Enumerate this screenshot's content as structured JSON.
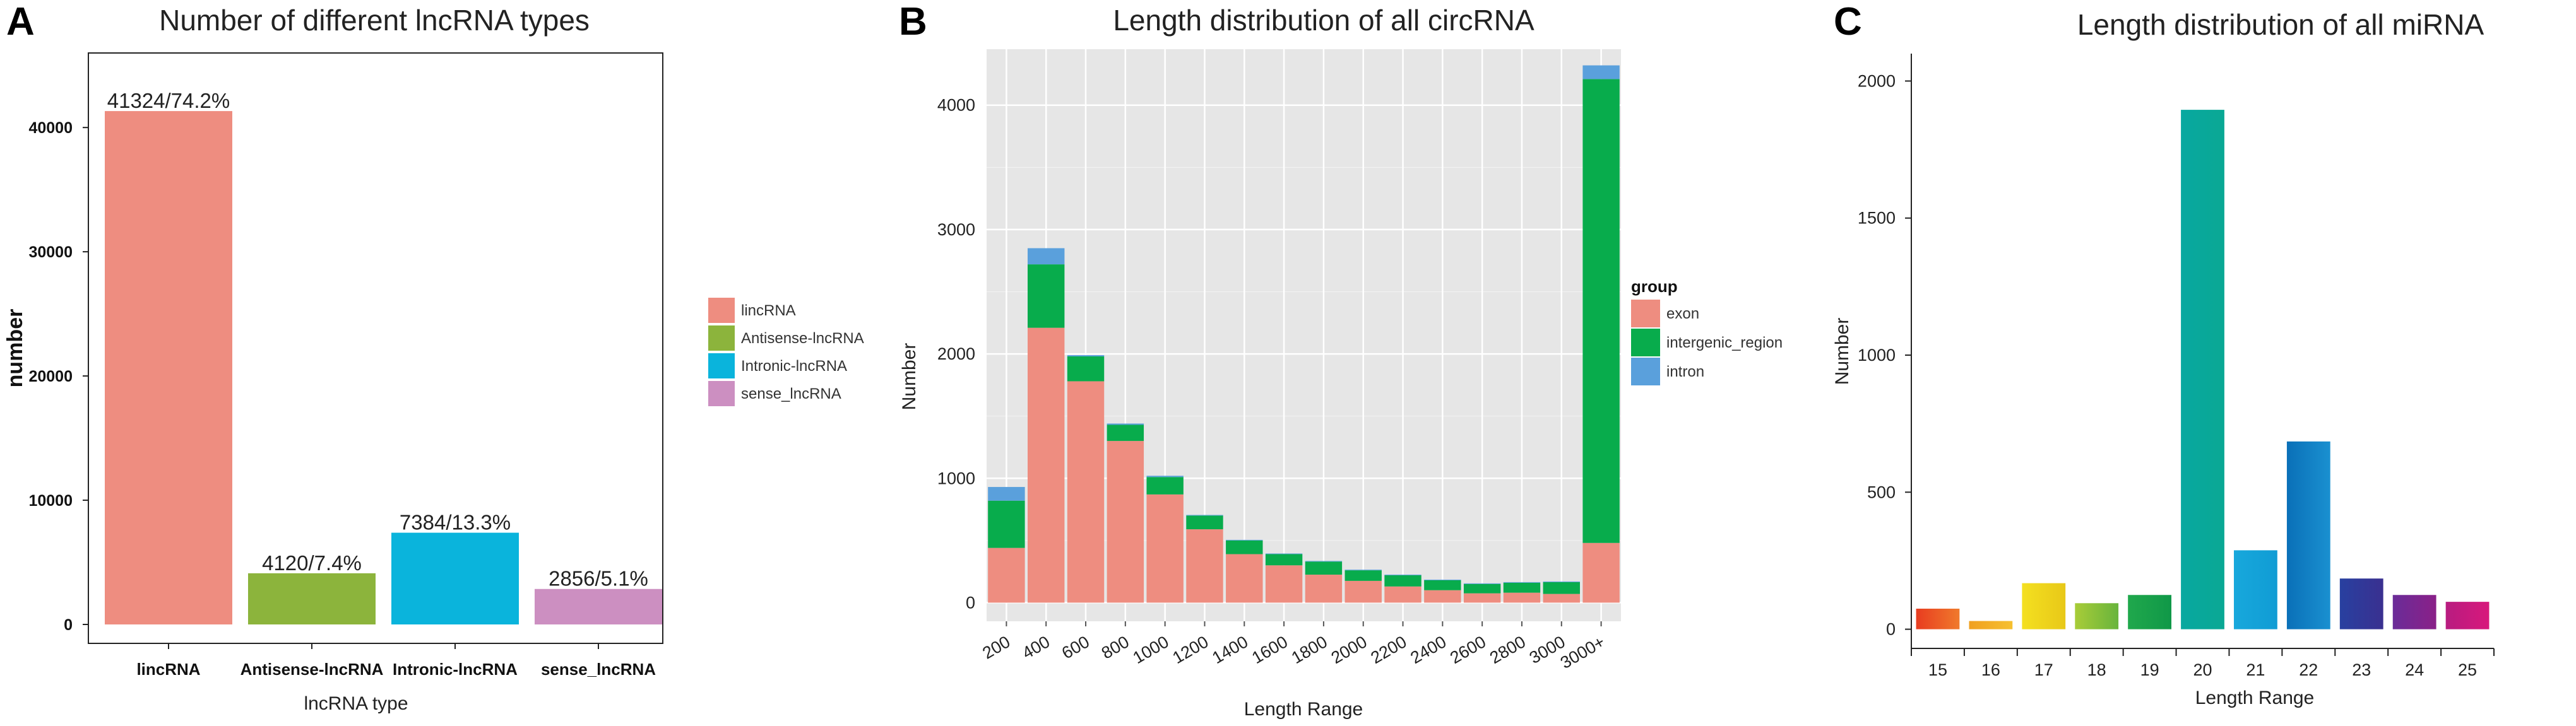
{
  "colors": {
    "lincRNA": "#ee8d80",
    "antisense": "#8cb43c",
    "intronic": "#0ab4dc",
    "sense": "#cc8fc1",
    "exon": "#ee8d80",
    "intergenic_region": "#08ac4c",
    "intron": "#5aa0dc"
  },
  "chart_data": [
    {
      "panel": "A",
      "type": "bar",
      "title": "Number of different lncRNA types",
      "xlabel": "lncRNA type",
      "ylabel": "number",
      "ylim": [
        0,
        46000
      ],
      "yticks": [
        0,
        10000,
        20000,
        30000,
        40000
      ],
      "categories": [
        "lincRNA",
        "Antisense-lncRNA",
        "Intronic-lncRNA",
        "sense_lncRNA"
      ],
      "values": [
        41324,
        4120,
        7384,
        2856
      ],
      "data_labels": [
        "41324/74.2%",
        "4120/7.4%",
        "7384/13.3%",
        "2856/5.1%"
      ],
      "bar_colors": [
        "#ee8d80",
        "#8cb43c",
        "#0ab4dc",
        "#cc8fc1"
      ],
      "legend": [
        "lincRNA",
        "Antisense-lncRNA",
        "Intronic-lncRNA",
        "sense_lncRNA"
      ],
      "legend_position": "right",
      "grid": false
    },
    {
      "panel": "B",
      "type": "bar",
      "stacked": true,
      "title": "Length distribution of all circRNA",
      "xlabel": "Length Range",
      "ylabel": "Number",
      "ylim": [
        -150,
        4450
      ],
      "yticks": [
        0,
        1000,
        2000,
        3000,
        4000
      ],
      "categories": [
        "200",
        "400",
        "600",
        "800",
        "1000",
        "1200",
        "1400",
        "1600",
        "1800",
        "2000",
        "2200",
        "2400",
        "2600",
        "2800",
        "3000",
        "3000+"
      ],
      "legend_title": "group",
      "legend_position": "right",
      "grid": true,
      "series": [
        {
          "name": "exon",
          "color": "#ee8d80",
          "values": [
            440,
            2210,
            1780,
            1300,
            870,
            590,
            390,
            300,
            225,
            175,
            130,
            100,
            75,
            80,
            70,
            480
          ]
        },
        {
          "name": "intergenic_region",
          "color": "#08ac4c",
          "values": [
            380,
            510,
            200,
            130,
            140,
            110,
            110,
            90,
            105,
            85,
            90,
            80,
            75,
            80,
            95,
            3730
          ]
        },
        {
          "name": "intron",
          "color": "#5aa0dc",
          "values": [
            110,
            130,
            10,
            10,
            10,
            5,
            5,
            5,
            5,
            5,
            5,
            5,
            5,
            5,
            5,
            110
          ]
        }
      ]
    },
    {
      "panel": "C",
      "type": "bar",
      "title": "Length distribution of all miRNA",
      "xlabel": "Length Range",
      "ylabel": "Number",
      "ylim": [
        -70,
        2100
      ],
      "yticks": [
        0,
        500,
        1000,
        1500,
        2000
      ],
      "categories": [
        "15",
        "16",
        "17",
        "18",
        "19",
        "20",
        "21",
        "22",
        "23",
        "24",
        "25"
      ],
      "values": [
        75,
        30,
        168,
        95,
        125,
        1895,
        288,
        685,
        185,
        125,
        100
      ],
      "bar_gradients": [
        [
          "#e83c20",
          "#f07a2c"
        ],
        [
          "#f0a020",
          "#f6c030"
        ],
        [
          "#f4e020",
          "#e8c818"
        ],
        [
          "#a8cc38",
          "#68b43c"
        ],
        [
          "#20a84c",
          "#109848"
        ],
        [
          "#08a8a0",
          "#0aa894"
        ],
        [
          "#18a8dc",
          "#109cd4"
        ],
        [
          "#0a70b8",
          "#1a90d0"
        ],
        [
          "#2840a0",
          "#3a3090"
        ],
        [
          "#6a2c98",
          "#8a2088"
        ],
        [
          "#b81c80",
          "#d8187c"
        ]
      ],
      "grid": false
    }
  ]
}
